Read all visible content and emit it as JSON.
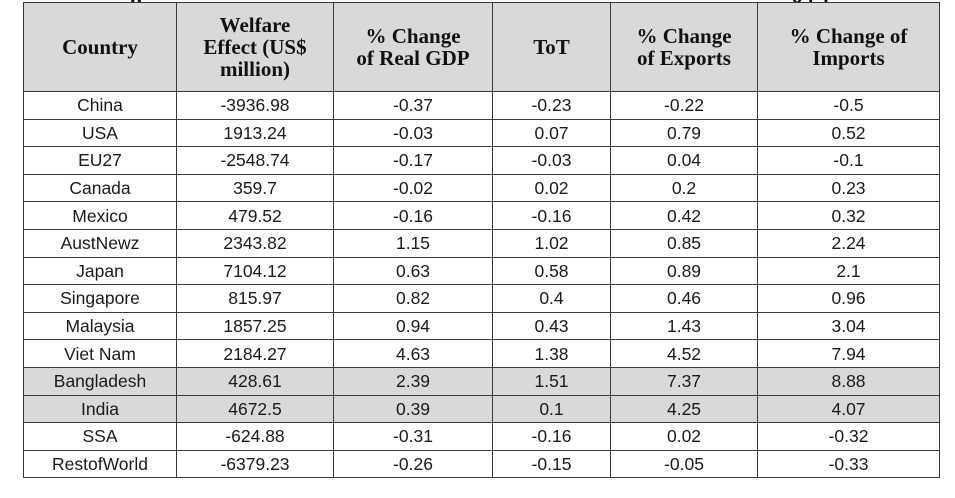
{
  "partial_caption": {
    "left": "p",
    "right": "g (  )"
  },
  "table": {
    "headers": [
      "Country",
      "Welfare\nEffect (US$\nmillion)",
      "% Change\nof Real GDP",
      "ToT",
      "% Change\nof Exports",
      "%  Change of\nImports"
    ],
    "rows": [
      {
        "country": "China",
        "welfare": "-3936.98",
        "gdp": "-0.37",
        "tot": "-0.23",
        "exports": "-0.22",
        "imports": "-0.5",
        "shaded": false
      },
      {
        "country": "USA",
        "welfare": "1913.24",
        "gdp": "-0.03",
        "tot": "0.07",
        "exports": "0.79",
        "imports": "0.52",
        "shaded": false
      },
      {
        "country": "EU27",
        "welfare": "-2548.74",
        "gdp": "-0.17",
        "tot": "-0.03",
        "exports": "0.04",
        "imports": "-0.1",
        "shaded": false
      },
      {
        "country": "Canada",
        "welfare": "359.7",
        "gdp": "-0.02",
        "tot": "0.02",
        "exports": "0.2",
        "imports": "0.23",
        "shaded": false
      },
      {
        "country": "Mexico",
        "welfare": "479.52",
        "gdp": "-0.16",
        "tot": "-0.16",
        "exports": "0.42",
        "imports": "0.32",
        "shaded": false
      },
      {
        "country": "AustNewz",
        "welfare": "2343.82",
        "gdp": "1.15",
        "tot": "1.02",
        "exports": "0.85",
        "imports": "2.24",
        "shaded": false
      },
      {
        "country": "Japan",
        "welfare": "7104.12",
        "gdp": "0.63",
        "tot": "0.58",
        "exports": "0.89",
        "imports": "2.1",
        "shaded": false
      },
      {
        "country": "Singapore",
        "welfare": "815.97",
        "gdp": "0.82",
        "tot": "0.4",
        "exports": "0.46",
        "imports": "0.96",
        "shaded": false
      },
      {
        "country": "Malaysia",
        "welfare": "1857.25",
        "gdp": "0.94",
        "tot": "0.43",
        "exports": "1.43",
        "imports": "3.04",
        "shaded": false
      },
      {
        "country": "Viet Nam",
        "welfare": "2184.27",
        "gdp": "4.63",
        "tot": "1.38",
        "exports": "4.52",
        "imports": "7.94",
        "shaded": false
      },
      {
        "country": "Bangladesh",
        "welfare": "428.61",
        "gdp": "2.39",
        "tot": "1.51",
        "exports": "7.37",
        "imports": "8.88",
        "shaded": true
      },
      {
        "country": "India",
        "welfare": "4672.5",
        "gdp": "0.39",
        "tot": "0.1",
        "exports": "4.25",
        "imports": "4.07",
        "shaded": true
      },
      {
        "country": "SSA",
        "welfare": "-624.88",
        "gdp": "-0.31",
        "tot": "-0.16",
        "exports": "0.02",
        "imports": "-0.32",
        "shaded": false
      },
      {
        "country": "RestofWorld",
        "welfare": "-6379.23",
        "gdp": "-0.26",
        "tot": "-0.15",
        "exports": "-0.05",
        "imports": "-0.33",
        "shaded": false
      }
    ]
  },
  "colors": {
    "header_fill": "#d9d9d9",
    "highlight_row_fill": "#d9d9d9",
    "border": "#3a3a3a"
  }
}
